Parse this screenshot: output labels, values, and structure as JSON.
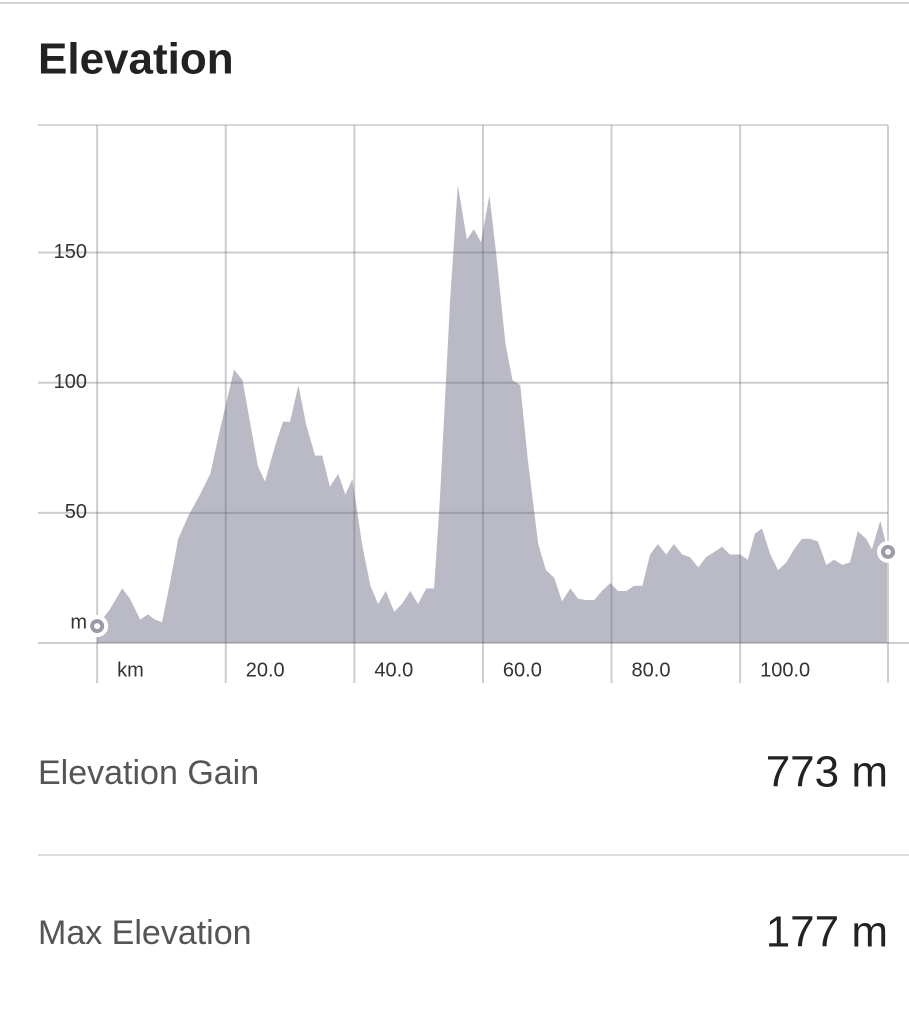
{
  "header": {
    "title": "Elevation"
  },
  "chart_data": {
    "type": "area",
    "color": "#babac6",
    "x": [
      0,
      2,
      3.9,
      5.1,
      6.7,
      7.9,
      9,
      10.1,
      11.4,
      12.6,
      14.2,
      16,
      17.6,
      19.1,
      21.3,
      22.6,
      25,
      26.1,
      27.7,
      28.9,
      30,
      31.3,
      32.5,
      33.9,
      35,
      36.2,
      37.5,
      38.6,
      39.7,
      41.2,
      42.5,
      43.7,
      44.9,
      46.2,
      47.4,
      48.7,
      49.9,
      51.2,
      52.4,
      53.3,
      54.9,
      56.1,
      57.5,
      58.6,
      59.7,
      61,
      62,
      63.5,
      64.6,
      65.8,
      67,
      68.6,
      69.8,
      71.1,
      72.3,
      73.6,
      74.8,
      76,
      77.3,
      78.5,
      79.8,
      81,
      82.3,
      83.5,
      84.8,
      86,
      87.2,
      88.5,
      89.7,
      91,
      92.2,
      93.5,
      94.7,
      96,
      97.2,
      98.4,
      100,
      101.2,
      102.3,
      103.4,
      104.7,
      105.9,
      107.2,
      108.4,
      109.6,
      110.9,
      112.1,
      113.4,
      114.6,
      115.9,
      117.1,
      118.3,
      119.6,
      120.5,
      121.8,
      123
    ],
    "values": [
      6.5,
      13,
      21,
      17,
      9,
      11,
      9,
      8,
      24,
      40,
      49,
      57,
      65,
      82,
      105,
      101,
      68,
      62,
      76,
      85,
      85,
      99,
      84,
      72,
      72,
      60,
      65,
      57,
      63,
      38,
      22,
      15,
      20,
      12,
      15,
      20,
      15,
      21,
      21,
      55,
      132,
      176,
      155,
      159,
      154,
      172,
      151,
      115,
      101,
      99,
      70,
      38,
      28,
      25,
      16,
      21,
      17,
      16.5,
      16.5,
      20,
      23,
      20,
      20,
      22,
      22,
      34,
      38,
      34,
      38,
      34,
      33,
      29,
      33,
      35,
      37,
      34,
      34,
      32,
      42,
      44,
      34,
      28,
      31,
      36,
      40,
      40,
      39,
      30,
      32,
      30,
      31,
      43,
      40,
      36,
      47,
      35
    ],
    "xlim": [
      -9.2,
      123
    ],
    "ylim": [
      0,
      199
    ],
    "xticks": [
      {
        "value": 0,
        "label": "km"
      },
      {
        "value": 20,
        "label": "20.0"
      },
      {
        "value": 40,
        "label": "40.0"
      },
      {
        "value": 60,
        "label": "60.0"
      },
      {
        "value": 80,
        "label": "80.0"
      },
      {
        "value": 100,
        "label": "100.0"
      }
    ],
    "yticks": [
      {
        "value": 0,
        "label": "m"
      },
      50,
      100,
      150
    ],
    "grid": true
  },
  "stats": [
    {
      "label": "Elevation Gain",
      "value": "773 m"
    },
    {
      "label": "Max Elevation",
      "value": "177 m"
    }
  ]
}
